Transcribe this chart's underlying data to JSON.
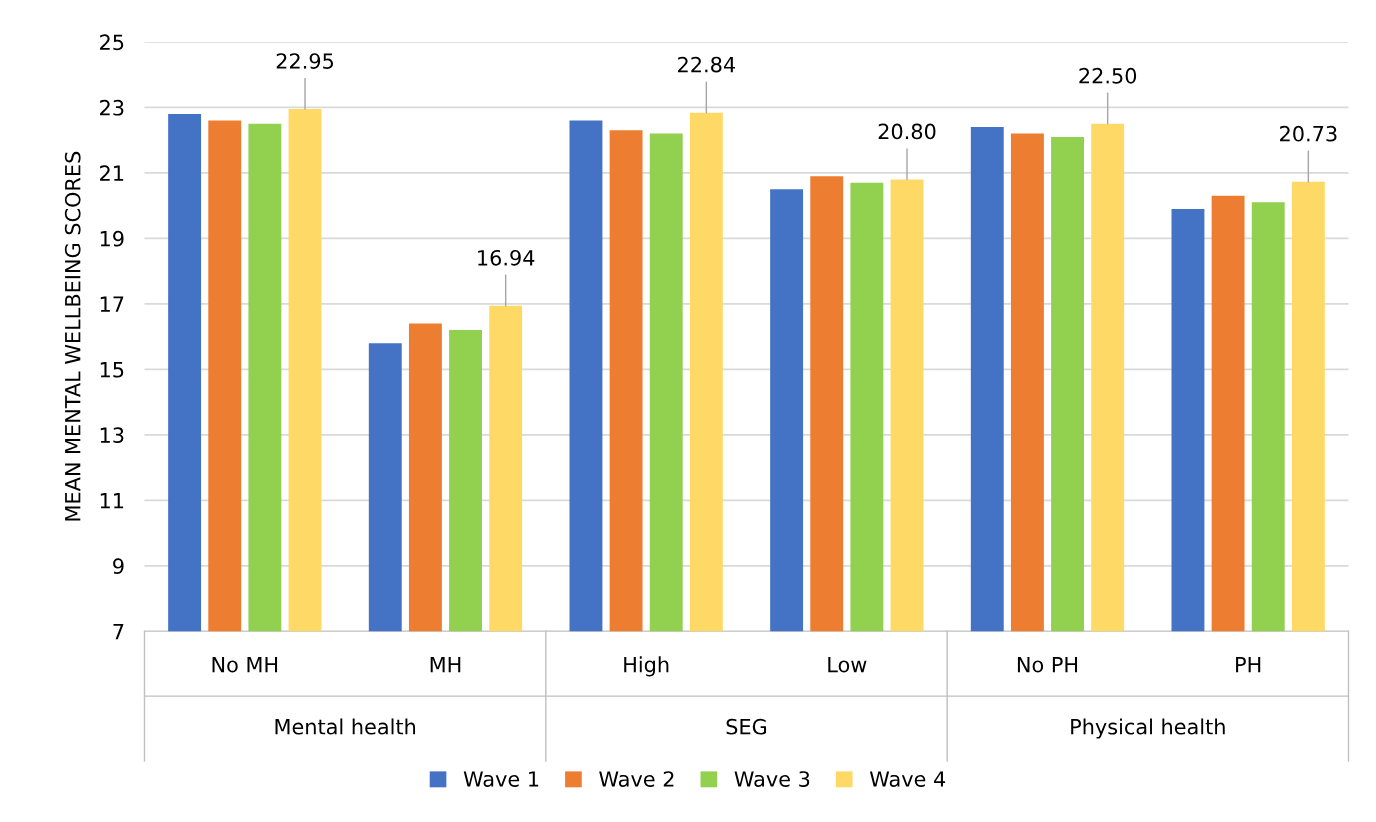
{
  "chart_data": {
    "type": "bar",
    "ylabel": "MEAN MENTAL WELLBEING SCORES",
    "categories": [
      "No MH",
      "MH",
      "High",
      "Low",
      "No PH",
      "PH"
    ],
    "series": [
      {
        "name": "Wave 1",
        "color": "#4472c4",
        "values": [
          22.8,
          15.8,
          22.6,
          20.5,
          22.4,
          19.9
        ]
      },
      {
        "name": "Wave 2",
        "color": "#ed7d31",
        "values": [
          22.6,
          16.4,
          22.3,
          20.9,
          22.2,
          20.3
        ]
      },
      {
        "name": "Wave 3",
        "color": "#92d050",
        "values": [
          22.5,
          16.2,
          22.2,
          20.7,
          22.1,
          20.1
        ]
      },
      {
        "name": "Wave 4",
        "color": "#ffd966",
        "values": [
          22.95,
          16.94,
          22.84,
          20.8,
          22.5,
          20.73
        ],
        "value_labels": [
          "22.95",
          "16.94",
          "22.84",
          "20.80",
          "22.50",
          "20.73"
        ]
      }
    ],
    "annotations": [
      "Mental health",
      "SEG",
      "Physical health"
    ],
    "ylim": [
      7,
      25
    ],
    "yticks": [
      7,
      9,
      11,
      13,
      15,
      17,
      19,
      21,
      23,
      25
    ],
    "grid": "y",
    "legend": "bottom"
  }
}
